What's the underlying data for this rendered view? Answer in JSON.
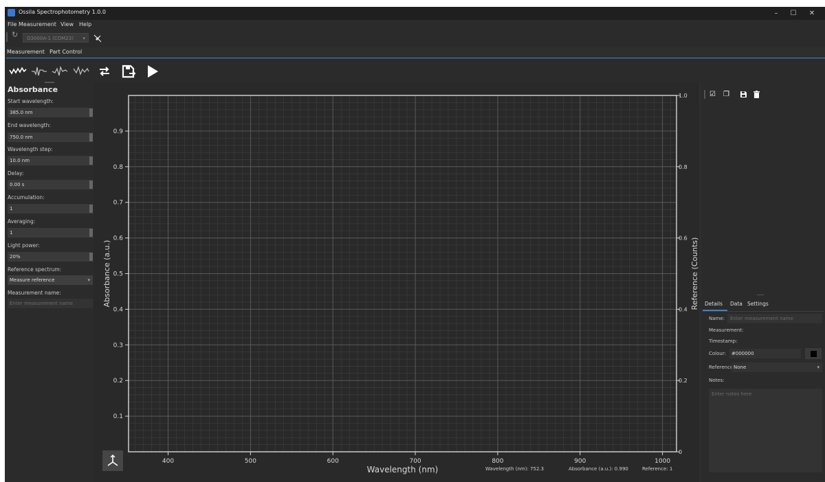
{
  "window": {
    "title": "Ossila Spectrophotometry 1.0.0",
    "minimize": "–",
    "maximize": "☐",
    "close": "✕"
  },
  "menu": [
    "File",
    "Measurement",
    "View",
    "Help"
  ],
  "device": {
    "selected": "Q3000A-1 (COM23)"
  },
  "main_tabs": [
    "Measurement",
    "Part Control"
  ],
  "toolbar_icons": [
    "absorbance-mode-icon",
    "transmittance-mode-icon",
    "reflectance-mode-icon",
    "fluorescence-mode-icon",
    "repeat-icon",
    "save-measure-icon",
    "play-icon"
  ],
  "left_panel": {
    "title": "Absorbance",
    "fields": [
      {
        "label": "Start wavelength:",
        "value": "385.0 nm"
      },
      {
        "label": "End wavelength:",
        "value": "750.0 nm"
      },
      {
        "label": "Wavelength step:",
        "value": "10.0 nm"
      },
      {
        "label": "Delay:",
        "value": "0.00 s"
      },
      {
        "label": "Accumulation:",
        "value": "1"
      },
      {
        "label": "Averaging:",
        "value": "1"
      },
      {
        "label": "Light power:",
        "value": "20%"
      }
    ],
    "reference_label": "Reference spectrum:",
    "reference_value": "Measure reference",
    "name_label": "Measurement name:",
    "name_placeholder": "Enter measurement name"
  },
  "chart_data": {
    "type": "line",
    "xlabel": "Wavelength (nm)",
    "ylabel": "Absorbance (a.u.)",
    "y2label": "Reference (Counts)",
    "xlim": [
      352,
      1017
    ],
    "ylim": [
      0,
      1.0
    ],
    "y2lim": [
      0,
      1.0
    ],
    "x_ticks": [
      400,
      500,
      600,
      700,
      800,
      900,
      1000
    ],
    "y_ticks": [
      0.1,
      0.2,
      0.3,
      0.4,
      0.5,
      0.6,
      0.7,
      0.8,
      0.9
    ],
    "y2_ticks": [
      0,
      0.2,
      0.4,
      0.6,
      0.8,
      1.0
    ],
    "grid": true,
    "series": []
  },
  "readout": {
    "wavelength": "Wavelength (nm): 752.3",
    "absorbance": "Absorbance (a.u.): 0.990",
    "reference": "Reference: 1"
  },
  "right_panel": {
    "tabs": [
      "Details",
      "Data",
      "Settings"
    ],
    "name_label": "Name:",
    "name_placeholder": "Enter measurement name",
    "measurement_label": "Measurement:",
    "timestamp_label": "Timestamp:",
    "colour_label": "Colour:",
    "colour_value": "#000000",
    "reference_label": "Reference:",
    "reference_value": "None",
    "notes_label": "Notes:",
    "notes_placeholder": "Enter notes here"
  },
  "colors": {
    "accent": "#3c82c8",
    "background": "#2e2e2e",
    "plot_bg": "#292929"
  }
}
